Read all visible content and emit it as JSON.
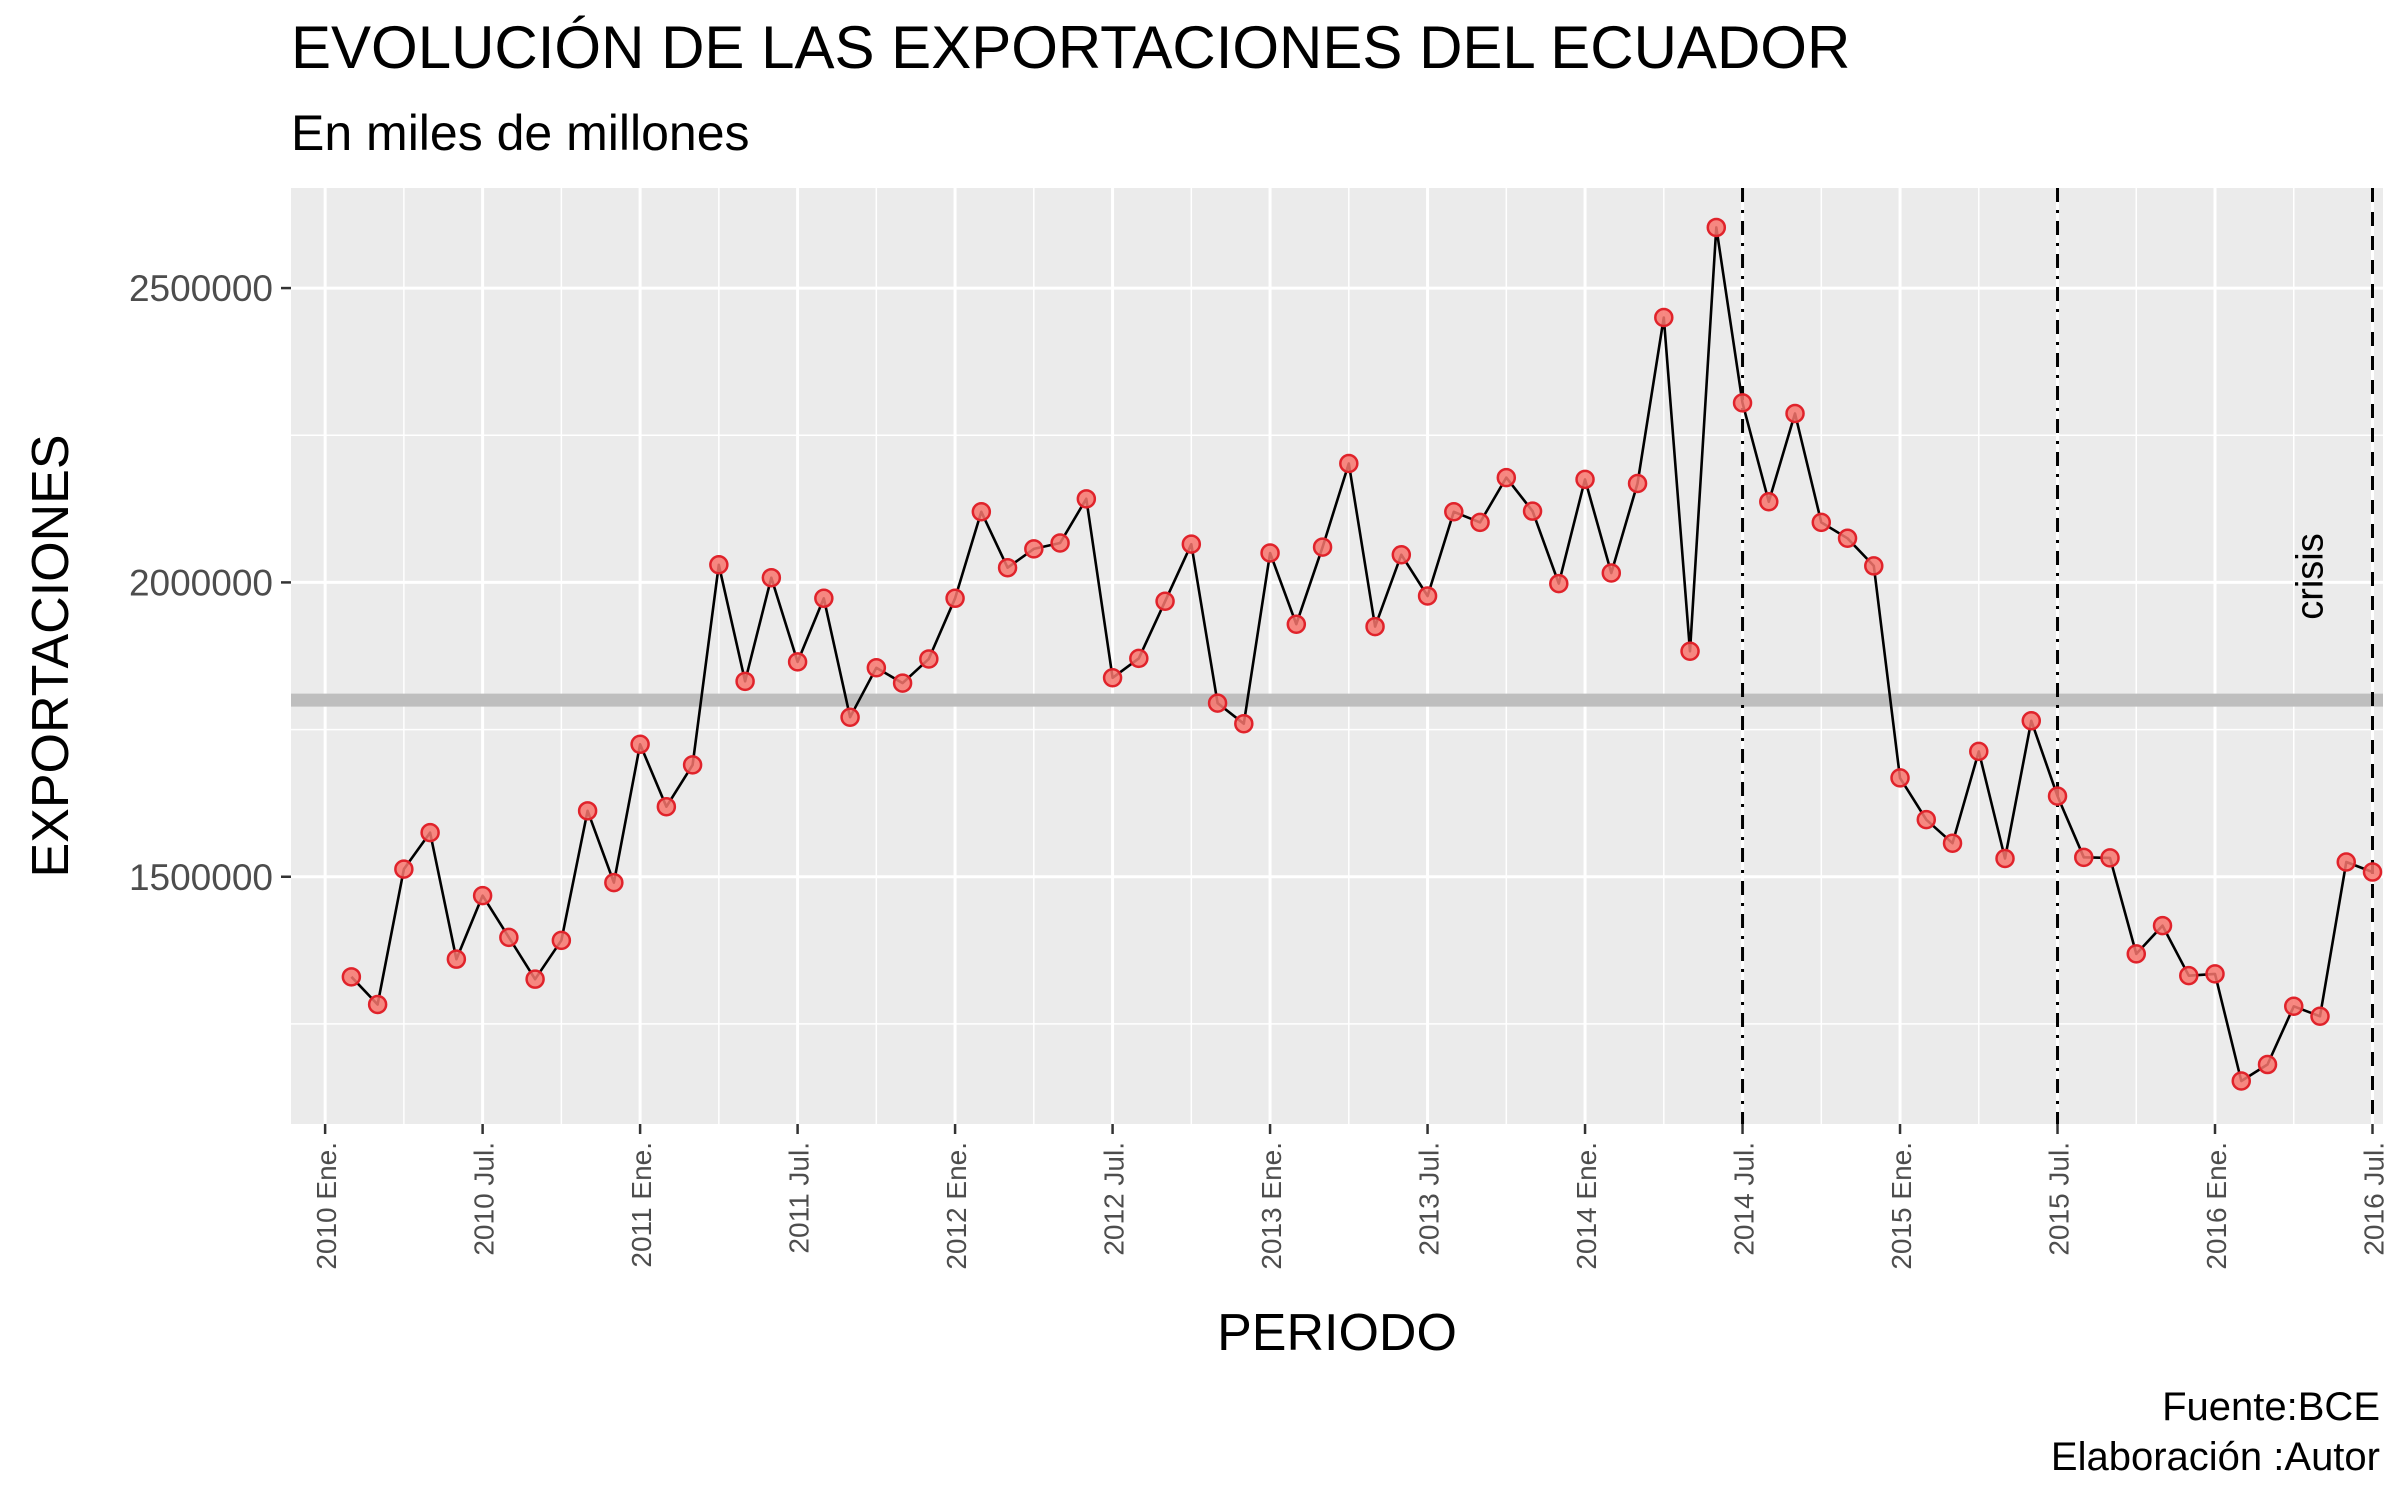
{
  "chart_data": {
    "type": "line",
    "title": "EVOLUCIÓN DE LAS EXPORTACIONES DEL ECUADOR",
    "subtitle": "En miles de millones",
    "xlabel": "PERIODO",
    "ylabel": "EXPORTACIONES",
    "caption_lines": [
      "Fuente:BCE",
      "Elaboración :Autor"
    ],
    "x_tick_labels": [
      "2010 Ene.",
      "2010 Jul.",
      "2011 Ene.",
      "2011 Jul.",
      "2012 Ene.",
      "2012 Jul.",
      "2013 Ene.",
      "2013 Jul.",
      "2014 Ene.",
      "2014 Jul.",
      "2015 Ene.",
      "2015 Jul.",
      "2016 Ene.",
      "2016 Jul."
    ],
    "y_ticks": [
      1500000,
      2000000,
      2500000
    ],
    "y_tick_labels": [
      "1500000",
      "2000000",
      "2500000"
    ],
    "ylim": [
      1080000,
      2670000
    ],
    "x_range_months": [
      -1.3,
      78.4
    ],
    "grid": true,
    "line_color": "#000000",
    "point_color": "#f8766d",
    "point_edge_color": "#e0232b",
    "panel_background": "#ebebeb",
    "reference_line": {
      "value": 1800000,
      "color": "#bebebe"
    },
    "vlines": [
      {
        "month": 54,
        "style": "dashdot"
      },
      {
        "month": 66,
        "style": "dashdot"
      },
      {
        "month": 78,
        "style": "dashed"
      }
    ],
    "annotation": {
      "text": "crisis",
      "month": 75.6,
      "value": 2010000
    },
    "values": [
      1330000,
      1283000,
      1513000,
      1575000,
      1360000,
      1468000,
      1397000,
      1326000,
      1392000,
      1612000,
      1490000,
      1725000,
      1619000,
      1690000,
      2030000,
      1832000,
      2008000,
      1865000,
      1973000,
      1771000,
      1855000,
      1829000,
      1870000,
      1973000,
      2120000,
      2025000,
      2057000,
      2067000,
      2142000,
      1838000,
      1871000,
      1968000,
      2065000,
      1795000,
      1760000,
      2050000,
      1929000,
      2060000,
      2202000,
      1925000,
      2047000,
      1977000,
      2120000,
      2102000,
      2178000,
      2121000,
      1998000,
      2175000,
      2016000,
      2168000,
      2450000,
      1883000,
      2603000,
      2305000,
      2137000,
      2287000,
      2102000,
      2075000,
      2028000,
      1668000,
      1597000,
      1557000,
      1713000,
      1531000,
      1765000,
      1637000,
      1533000,
      1532000,
      1369000,
      1417000,
      1332000,
      1335000,
      1153000,
      1181000,
      1280000,
      1263000,
      1525000,
      1508000
    ]
  }
}
